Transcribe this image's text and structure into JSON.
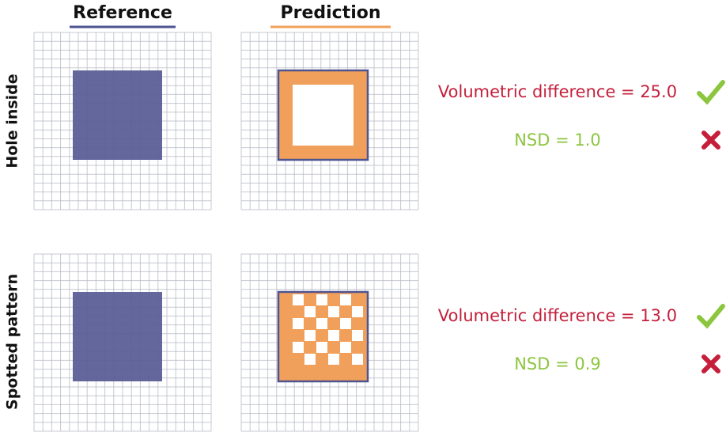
{
  "columns": [
    "Reference",
    "Prediction"
  ],
  "rows": [
    {
      "label": "Hole inside",
      "metrics": [
        "Volumetric difference = 25.0",
        "NSD = 1.0"
      ]
    },
    {
      "label": "Spotted pattern",
      "metrics": [
        "Volumetric difference = 13.0",
        "NSD = 0.9"
      ]
    }
  ]
}
